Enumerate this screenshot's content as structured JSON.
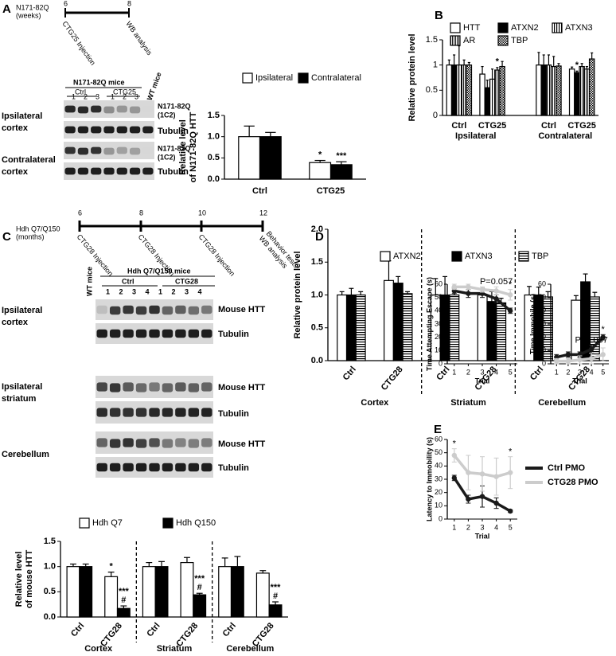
{
  "panel_letters": [
    "A",
    "B",
    "C",
    "D",
    "E"
  ],
  "timeline_a": {
    "title": [
      "N171-82Q",
      "(weeks)"
    ],
    "ticks": [
      "6",
      "8"
    ],
    "events": [
      "CTG25 Injection",
      "WB analysis"
    ]
  },
  "blot_a": {
    "group": "N171-82Q mice",
    "ctrl": "Ctrl",
    "treated": "CTG25",
    "wt": "WT mice",
    "ctrl_lanes": [
      "1",
      "2",
      "3"
    ],
    "treated_lanes": [
      "1",
      "2",
      "3"
    ],
    "rows": [
      [
        "Ipsilateral",
        "cortex"
      ],
      [
        "Contralateral",
        "cortex"
      ]
    ],
    "bands": [
      [
        "N171-82Q",
        "(1C2)"
      ],
      "Tubulin",
      [
        "N171-82Q",
        "(1C2)"
      ],
      "Tubulin"
    ]
  },
  "timeline_c": {
    "title": [
      "Hdh Q7/Q150",
      "(months)"
    ],
    "ticks": [
      "6",
      "8",
      "10",
      "12"
    ],
    "events": [
      "CTG28 Injection",
      "CTG28 Injection",
      "CTG28 Injection",
      [
        "Behavior tests",
        "WB analysis"
      ]
    ]
  },
  "blot_c": {
    "group": "Hdh Q7/Q150 mice",
    "ctrl": "Ctrl",
    "treated": "CTG28",
    "wt": "WT mice",
    "ctrl_lanes": [
      "1",
      "2",
      "3",
      "4"
    ],
    "treated_lanes": [
      "1",
      "2",
      "3",
      "4"
    ],
    "rows": [
      [
        "Ipsilateral",
        "cortex"
      ],
      [
        "Ipsilateral",
        "striatum"
      ],
      [
        "Cerebellum"
      ]
    ],
    "bands": [
      "Mouse HTT",
      "Tubulin",
      "Mouse HTT",
      "Tubulin",
      "Mouse HTT",
      "Tubulin"
    ]
  },
  "chart_data": [
    {
      "type": "bar",
      "ylabel": [
        "Relative level",
        "of N171-82Q HTT"
      ],
      "categories": [
        "Ctrl",
        "CTG25"
      ],
      "series": [
        {
          "name": "Ipsilateral",
          "color": "#ffffff",
          "values": [
            1.0,
            0.39
          ],
          "errors": [
            0.25,
            0.05
          ]
        },
        {
          "name": "Contralateral",
          "color": "#000000",
          "values": [
            1.0,
            0.34
          ],
          "errors": [
            0.1,
            0.07
          ]
        }
      ],
      "ylim": [
        0,
        1.5
      ],
      "yticks": [
        {
          "value": 0,
          "label": "0.0"
        },
        0.5,
        {
          "value": 1,
          "label": "1.0"
        },
        1.5
      ],
      "annotations": [
        "*",
        "***"
      ]
    },
    {
      "type": "bar",
      "ylabel": "Relative protein level",
      "categories": [
        "Ctrl",
        "CTG25",
        "Ctrl",
        "CTG25"
      ],
      "groups": [
        "Ipsilateral",
        "Contralateral"
      ],
      "series": [
        {
          "name": "HTT",
          "color": "#ffffff",
          "values": [
            1.0,
            0.82,
            1.0,
            0.92
          ],
          "errors": [
            0.1,
            0.15,
            0.25,
            0.04
          ]
        },
        {
          "name": "ATXN2",
          "color": "#000000",
          "values": [
            1.0,
            0.55,
            1.0,
            0.85
          ],
          "errors": [
            0.2,
            0.15,
            0.2,
            0.03
          ]
        },
        {
          "name": "ATXN3",
          "color": "#000000",
          "pattern": "vstripe",
          "values": [
            1.0,
            0.72,
            1.0,
            0.97
          ],
          "errors": [
            0.38,
            0.2,
            0.2,
            0.06
          ]
        },
        {
          "name": "AR",
          "color": "#000000",
          "pattern": "vstripe2",
          "values": [
            1.0,
            0.9,
            0.97,
            0.92
          ],
          "errors": [
            0.1,
            0.05,
            0.2,
            0.05
          ]
        },
        {
          "name": "TBP",
          "color": "#000000",
          "pattern": "check",
          "values": [
            1.0,
            0.97,
            0.98,
            1.12
          ],
          "errors": [
            0.05,
            0.1,
            0.05,
            0.12
          ]
        }
      ],
      "ylim": [
        0,
        1.5
      ],
      "yticks": [
        0,
        0.5,
        1,
        1.5
      ],
      "annotations": [
        "*",
        "*"
      ]
    },
    {
      "type": "bar",
      "ylabel": [
        "Relative level",
        "of mouse HTT"
      ],
      "categories": [
        "Ctrl",
        "CTG28",
        "Ctrl",
        "CTG28",
        "Ctrl",
        "CTG28"
      ],
      "groups": [
        "Cortex",
        "Striatum",
        "Cerebellum"
      ],
      "series": [
        {
          "name": "Hdh Q7",
          "color": "#ffffff",
          "values": [
            1.0,
            0.8,
            1.0,
            1.08,
            1.0,
            0.87
          ],
          "errors": [
            0.05,
            0.09,
            0.08,
            0.1,
            0.17,
            0.05
          ]
        },
        {
          "name": "Hdh Q150",
          "color": "#000000",
          "values": [
            1.0,
            0.17,
            1.0,
            0.44,
            1.0,
            0.24
          ],
          "errors": [
            0.05,
            0.05,
            0.1,
            0.03,
            0.2,
            0.06
          ]
        }
      ],
      "ylim": [
        0,
        1.5
      ],
      "yticks": [
        {
          "value": 0,
          "label": "0.0"
        },
        0.5,
        {
          "value": 1,
          "label": "1.0"
        },
        1.5
      ],
      "annotations": [
        "*",
        "#",
        "***",
        "#",
        "***",
        "#",
        "***"
      ]
    },
    {
      "type": "bar",
      "ylabel": "Relative protein level",
      "categories": [
        "Ctrl",
        "CTG28",
        "Ctrl",
        "CTG28",
        "Ctrl",
        "CTG28"
      ],
      "groups": [
        "Cortex",
        "Striatum",
        "Cerebellum"
      ],
      "series": [
        {
          "name": "ATXN2",
          "color": "#ffffff",
          "values": [
            1.0,
            1.22,
            1.0,
            1.0,
            1.0,
            0.92
          ],
          "errors": [
            0.05,
            0.3,
            0.25,
            0.1,
            0.13,
            0.07
          ]
        },
        {
          "name": "ATXN3",
          "color": "#000000",
          "values": [
            1.0,
            1.18,
            1.0,
            0.9,
            1.0,
            1.2
          ],
          "errors": [
            0.1,
            0.1,
            0.28,
            0.15,
            0.12,
            0.12
          ]
        },
        {
          "name": "TBP",
          "color": "#000000",
          "pattern": "hstripe",
          "values": [
            1.0,
            1.02,
            1.0,
            0.88,
            0.97,
            0.97
          ],
          "errors": [
            0.05,
            0.03,
            0.12,
            0.07,
            0.08,
            0.07
          ]
        }
      ],
      "ylim": [
        0,
        2
      ],
      "yticks": [
        {
          "value": 0,
          "label": "0.0"
        },
        0.5,
        {
          "value": 1,
          "label": "1.0"
        },
        1.5,
        {
          "value": 2,
          "label": "2.0"
        }
      ]
    },
    {
      "type": "line",
      "ylabel": "Time Attempting Escape (s)",
      "xlabel": "Trial",
      "x": [
        1,
        2,
        3,
        4,
        5
      ],
      "series": [
        {
          "color": "#1a1a1a",
          "values": [
            55,
            53,
            53,
            49,
            40
          ],
          "errors": [
            2,
            3,
            3,
            3,
            2
          ]
        },
        {
          "color": "#cccccc",
          "values": [
            58,
            58,
            56,
            55,
            52
          ],
          "errors": [
            2,
            2,
            2,
            3,
            4
          ]
        }
      ],
      "xlim": [
        0.5,
        5.5
      ],
      "xticks": [
        1,
        2,
        3,
        4,
        5
      ],
      "ylim": [
        0,
        60
      ],
      "yticks": [
        0,
        10,
        20,
        30,
        40,
        50,
        60
      ],
      "annotations": [
        "P=0.057",
        "*"
      ]
    },
    {
      "type": "line",
      "ylabel": "Time Immobile (s)",
      "xlabel": "Trial",
      "x": [
        1,
        2,
        3,
        4,
        5
      ],
      "series": [
        {
          "color": "#1a1a1a",
          "values": [
            5,
            7,
            7,
            11,
            20
          ],
          "errors": [
            2,
            2,
            2,
            3,
            2
          ]
        },
        {
          "color": "#cccccc",
          "values": [
            2,
            2,
            3,
            4,
            7
          ],
          "errors": [
            2,
            2,
            3,
            4,
            5
          ]
        }
      ],
      "xlim": [
        0.5,
        5.5
      ],
      "xticks": [
        1,
        2,
        3,
        4,
        5
      ],
      "ylim": [
        0,
        60
      ],
      "yticks": [
        0,
        10,
        20,
        30,
        40,
        50,
        60
      ],
      "annotations": [
        "P=0.057",
        "*"
      ]
    },
    {
      "type": "line",
      "ylabel": "Latency to Immobility (s)",
      "xlabel": "Trial",
      "x": [
        1,
        2,
        3,
        4,
        5
      ],
      "series": [
        {
          "name": "Ctrl PMO",
          "color": "#1a1a1a",
          "values": [
            31,
            15,
            17,
            12,
            6
          ],
          "errors": [
            2,
            3,
            8,
            4,
            1
          ]
        },
        {
          "name": "CTG28 PMO",
          "color": "#cccccc",
          "values": [
            48,
            35,
            34,
            32,
            35
          ],
          "errors": [
            5,
            13,
            13,
            14,
            12
          ]
        }
      ],
      "xlim": [
        0.5,
        5.5
      ],
      "xticks": [
        1,
        2,
        3,
        4,
        5
      ],
      "ylim": [
        0,
        60
      ],
      "yticks": [
        0,
        10,
        20,
        30,
        40,
        50,
        60
      ],
      "annotations": [
        "*",
        "*"
      ]
    }
  ]
}
